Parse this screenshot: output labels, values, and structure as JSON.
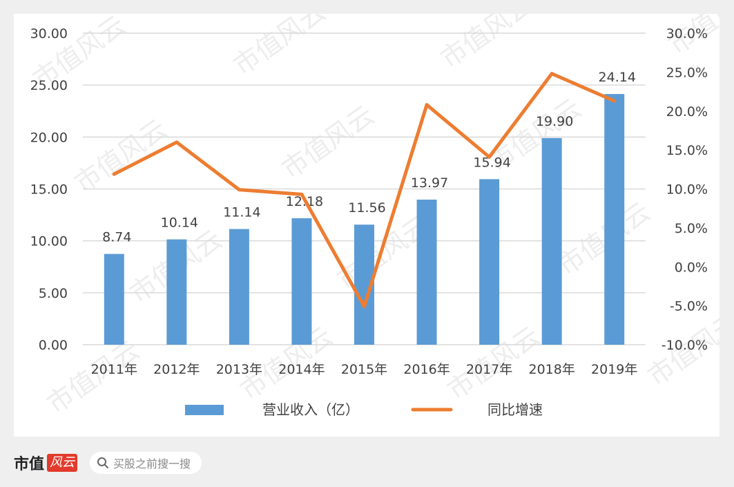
{
  "chart_data": {
    "type": "bar",
    "categories": [
      "2011年",
      "2012年",
      "2013年",
      "2014年",
      "2015年",
      "2016年",
      "2017年",
      "2018年",
      "2019年"
    ],
    "series": [
      {
        "name": "营业收入（亿）",
        "type": "bar",
        "axis": "left",
        "color": "#5b9bd5",
        "values": [
          8.74,
          10.14,
          11.14,
          12.18,
          11.56,
          13.97,
          15.94,
          19.9,
          24.14
        ],
        "labels": [
          "8.74",
          "10.14",
          "11.14",
          "12.18",
          "11.56",
          "13.97",
          "15.94",
          "19.90",
          "24.14"
        ]
      },
      {
        "name": "同比增速",
        "type": "line",
        "axis": "right",
        "color": "#ed7d31",
        "values": [
          11.9,
          16.0,
          9.9,
          9.3,
          -5.1,
          20.8,
          14.1,
          24.8,
          21.3
        ]
      }
    ],
    "ylim": [
      0,
      30
    ],
    "y_ticks": [
      "0.00",
      "5.00",
      "10.00",
      "15.00",
      "20.00",
      "25.00",
      "30.00"
    ],
    "y2lim": [
      -10,
      30
    ],
    "y2_ticks": [
      "-10.0%",
      "-5.0%",
      "0.0%",
      "5.0%",
      "10.0%",
      "15.0%",
      "20.0%",
      "25.0%",
      "30.0%"
    ],
    "grid": true,
    "legend": "bottom"
  },
  "watermark_text": "市值风云",
  "footer": {
    "brand_text": "市值",
    "brand_badge": "风云",
    "search_text": "买股之前搜一搜"
  },
  "icons": {
    "search": "search-icon"
  }
}
